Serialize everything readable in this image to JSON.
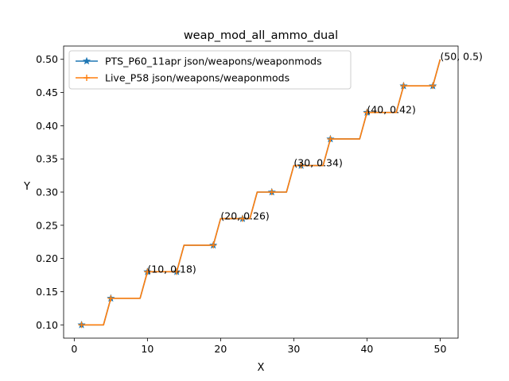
{
  "chart_data": {
    "type": "line",
    "title": "weap_mod_all_ammo_dual",
    "xlabel": "X",
    "ylabel": "Y",
    "xlim": [
      -1.45,
      52.45
    ],
    "ylim": [
      0.08,
      0.52
    ],
    "xticks": [
      0,
      10,
      20,
      30,
      40,
      50
    ],
    "yticks": [
      0.1,
      0.15,
      0.2,
      0.25,
      0.3,
      0.35,
      0.4,
      0.45,
      0.5
    ],
    "grid": false,
    "legend_position": "top-left",
    "series": [
      {
        "name": "PTS_P60_11apr json/weapons/weaponmods",
        "color": "#1f77b4",
        "marker": "star",
        "x": [
          1,
          2,
          3,
          4,
          5,
          6,
          7,
          8,
          9,
          10,
          11,
          12,
          13,
          14,
          15,
          16,
          17,
          18,
          19,
          20,
          21,
          22,
          23,
          24,
          25,
          26,
          27,
          28,
          29,
          30,
          31,
          32,
          33,
          34,
          35,
          36,
          37,
          38,
          39,
          40,
          41,
          42,
          43,
          44,
          45,
          46,
          47,
          48,
          49,
          50
        ],
        "y": [
          0.1,
          0.1,
          0.1,
          0.1,
          0.14,
          0.14,
          0.14,
          0.14,
          0.14,
          0.18,
          0.18,
          0.18,
          0.18,
          0.18,
          0.22,
          0.22,
          0.22,
          0.22,
          0.22,
          0.26,
          0.26,
          0.26,
          0.26,
          0.26,
          0.3,
          0.3,
          0.3,
          0.3,
          0.3,
          0.34,
          0.34,
          0.34,
          0.34,
          0.34,
          0.38,
          0.38,
          0.38,
          0.38,
          0.38,
          0.42,
          0.42,
          0.42,
          0.42,
          0.42,
          0.46,
          0.46,
          0.46,
          0.46,
          0.46,
          0.5
        ],
        "marker_x": [
          1,
          5,
          10,
          14,
          19,
          23,
          27,
          31,
          35,
          40,
          45,
          49
        ]
      },
      {
        "name": "Live_P58 json/weapons/weaponmods",
        "color": "#ff7f0e",
        "marker": "plus",
        "x": [
          1,
          2,
          3,
          4,
          5,
          6,
          7,
          8,
          9,
          10,
          11,
          12,
          13,
          14,
          15,
          16,
          17,
          18,
          19,
          20,
          21,
          22,
          23,
          24,
          25,
          26,
          27,
          28,
          29,
          30,
          31,
          32,
          33,
          34,
          35,
          36,
          37,
          38,
          39,
          40,
          41,
          42,
          43,
          44,
          45,
          46,
          47,
          48,
          49,
          50
        ],
        "y": [
          0.1,
          0.1,
          0.1,
          0.1,
          0.14,
          0.14,
          0.14,
          0.14,
          0.14,
          0.18,
          0.18,
          0.18,
          0.18,
          0.18,
          0.22,
          0.22,
          0.22,
          0.22,
          0.22,
          0.26,
          0.26,
          0.26,
          0.26,
          0.26,
          0.3,
          0.3,
          0.3,
          0.3,
          0.3,
          0.34,
          0.34,
          0.34,
          0.34,
          0.34,
          0.38,
          0.38,
          0.38,
          0.38,
          0.38,
          0.42,
          0.42,
          0.42,
          0.42,
          0.42,
          0.46,
          0.46,
          0.46,
          0.46,
          0.46,
          0.5
        ],
        "marker_x": [
          1,
          5,
          10,
          14,
          19,
          23,
          27,
          31,
          35,
          40,
          45,
          49
        ]
      }
    ],
    "annotations": [
      {
        "x": 10,
        "y": 0.18,
        "text": "(10, 0.18)"
      },
      {
        "x": 20,
        "y": 0.26,
        "text": "(20, 0.26)"
      },
      {
        "x": 30,
        "y": 0.34,
        "text": "(30, 0.34)"
      },
      {
        "x": 40,
        "y": 0.42,
        "text": "(40, 0.42)"
      },
      {
        "x": 50,
        "y": 0.5,
        "text": "(50, 0.5)"
      }
    ]
  }
}
